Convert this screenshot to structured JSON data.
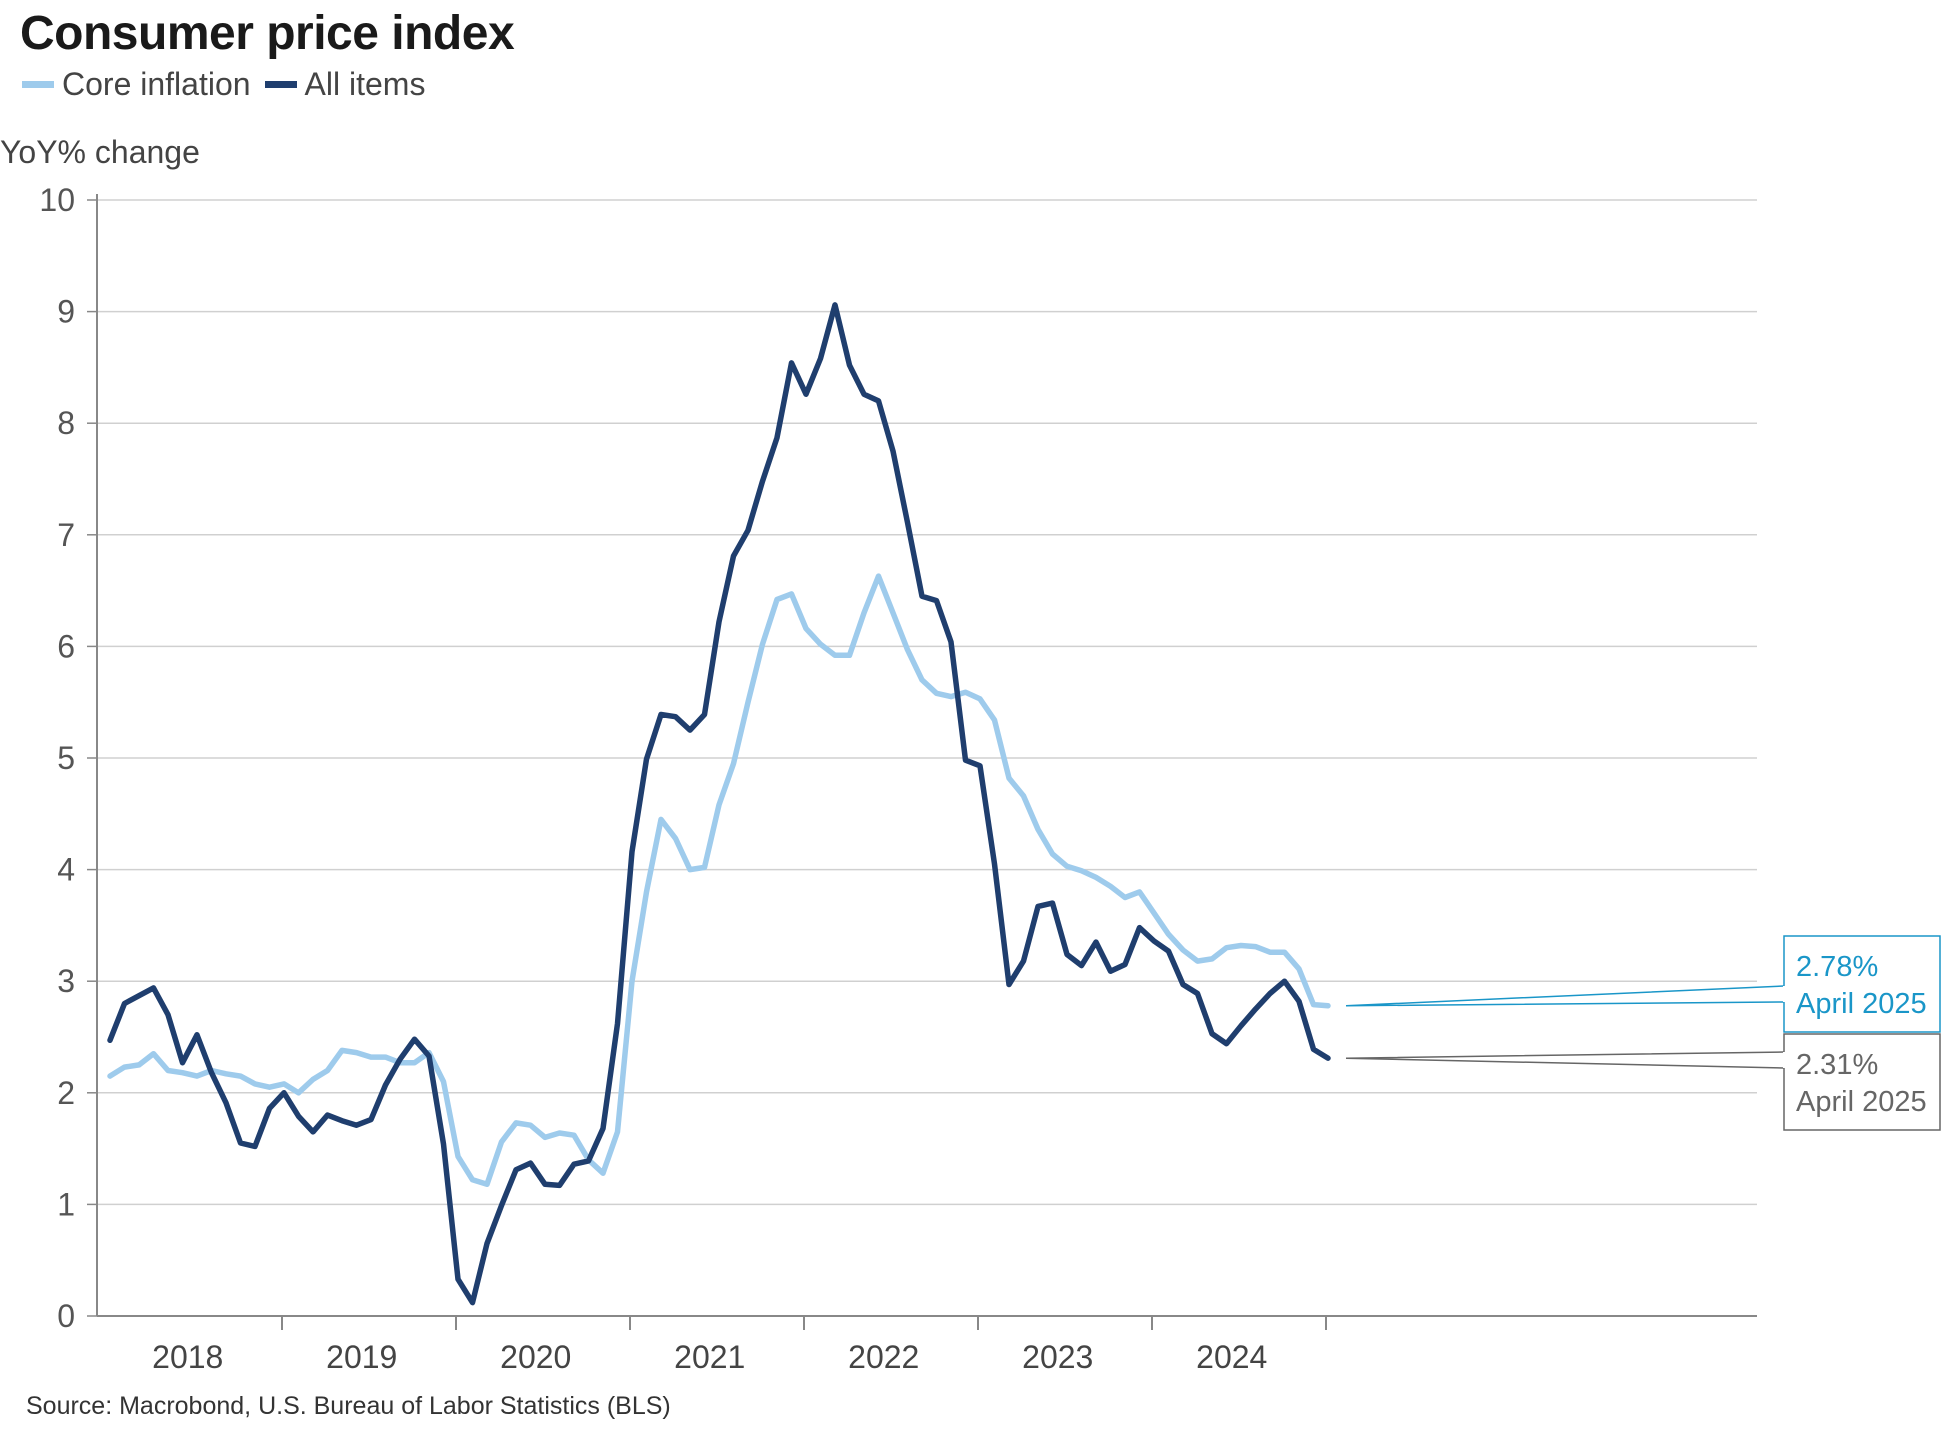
{
  "title": "Consumer price index",
  "ylabel_text": "YoY% change",
  "source": "Source: Macrobond, U.S. Bureau of Labor Statistics (BLS)",
  "colors": {
    "core": "#9ecbec",
    "all": "#1f3e6e",
    "grid": "#d0d0d0",
    "axis": "#888888",
    "callout_core": "#1a96c8",
    "callout_all": "#666666"
  },
  "chart_data": {
    "type": "line",
    "ylabel": "YoY% change",
    "ylim": [
      0,
      10
    ],
    "yticks": [
      0,
      1,
      2,
      3,
      4,
      5,
      6,
      7,
      8,
      9,
      10
    ],
    "x_start": "2018-01",
    "x_end": "2025-04",
    "x_tick_labels": [
      "2018",
      "2019",
      "2020",
      "2021",
      "2022",
      "2023",
      "2024"
    ],
    "grid": true,
    "legend_position": "top-left",
    "series": [
      {
        "name": "Core inflation",
        "key": "core",
        "values": [
          2.15,
          2.23,
          2.25,
          2.35,
          2.2,
          2.18,
          2.15,
          2.2,
          2.17,
          2.15,
          2.08,
          2.05,
          2.08,
          2.0,
          2.12,
          2.2,
          2.38,
          2.36,
          2.32,
          2.32,
          2.27,
          2.27,
          2.36,
          2.1,
          1.43,
          1.22,
          1.18,
          1.56,
          1.73,
          1.71,
          1.6,
          1.64,
          1.62,
          1.4,
          1.28,
          1.65,
          3.0,
          3.8,
          4.45,
          4.28,
          4.0,
          4.02,
          4.58,
          4.95,
          5.5,
          6.02,
          6.42,
          6.47,
          6.16,
          6.02,
          5.92,
          5.92,
          6.3,
          6.63,
          6.3,
          5.97,
          5.7,
          5.58,
          5.55,
          5.59,
          5.53,
          5.34,
          4.82,
          4.66,
          4.36,
          4.14,
          4.03,
          3.99,
          3.93,
          3.85,
          3.75,
          3.8,
          3.61,
          3.42,
          3.28,
          3.18,
          3.2,
          3.3,
          3.32,
          3.31,
          3.26,
          3.26,
          3.11,
          2.79,
          2.78
        ],
        "last_label": "2.78%",
        "last_date": "April 2025"
      },
      {
        "name": "All items",
        "key": "all",
        "values": [
          2.47,
          2.8,
          2.87,
          2.94,
          2.7,
          2.27,
          2.52,
          2.18,
          1.91,
          1.55,
          1.52,
          1.86,
          2.0,
          1.79,
          1.65,
          1.8,
          1.75,
          1.71,
          1.76,
          2.07,
          2.3,
          2.48,
          2.33,
          1.54,
          0.33,
          0.12,
          0.65,
          0.99,
          1.31,
          1.37,
          1.18,
          1.17,
          1.36,
          1.39,
          1.68,
          2.62,
          4.16,
          4.99,
          5.39,
          5.37,
          5.25,
          5.39,
          6.22,
          6.81,
          7.04,
          7.48,
          7.87,
          8.54,
          8.26,
          8.58,
          9.06,
          8.52,
          8.26,
          8.2,
          7.75,
          7.11,
          6.45,
          6.41,
          6.04,
          4.98,
          4.93,
          4.05,
          2.97,
          3.18,
          3.67,
          3.7,
          3.24,
          3.14,
          3.35,
          3.09,
          3.15,
          3.48,
          3.36,
          3.27,
          2.97,
          2.89,
          2.53,
          2.44,
          2.6,
          2.75,
          2.89,
          3.0,
          2.82,
          2.39,
          2.31
        ],
        "last_label": "2.31%",
        "last_date": "April 2025"
      }
    ]
  }
}
